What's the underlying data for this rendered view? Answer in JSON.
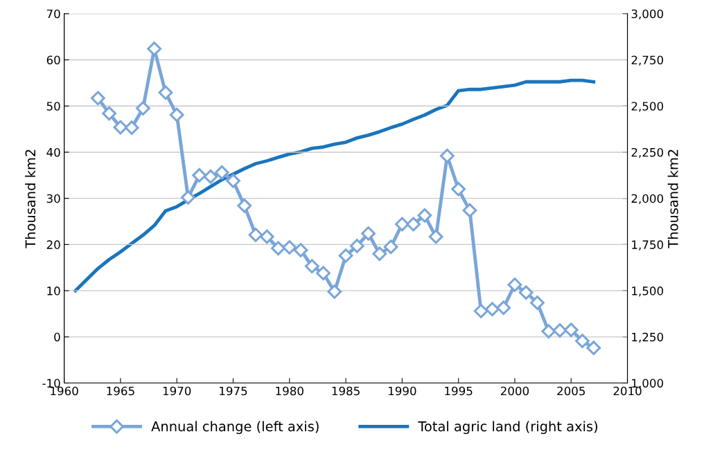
{
  "chart_data": {
    "type": "line",
    "ylabel": "Thousand km2",
    "y2label": "Thousand km2",
    "xlim": [
      1960,
      2010
    ],
    "xticks": [
      1960,
      1965,
      1970,
      1975,
      1980,
      1985,
      1990,
      1995,
      2000,
      2005,
      2010
    ],
    "ylim": [
      -10,
      70
    ],
    "yticks": [
      -10,
      0,
      10,
      20,
      30,
      40,
      50,
      60,
      70
    ],
    "y2lim": [
      1000,
      3000
    ],
    "y2ticks": [
      {
        "value": 1000,
        "label": "1,000"
      },
      {
        "value": 1250,
        "label": "1,250"
      },
      {
        "value": 1500,
        "label": "1,500"
      },
      {
        "value": 1750,
        "label": "1,750"
      },
      {
        "value": 2000,
        "label": "2,000"
      },
      {
        "value": 2250,
        "label": "2,250"
      },
      {
        "value": 2500,
        "label": "2,500"
      },
      {
        "value": 2750,
        "label": "2,750"
      },
      {
        "value": 3000,
        "label": "3,000"
      }
    ],
    "grid": "y",
    "legend": "bottom",
    "series": [
      {
        "name": "Annual change (left axis)",
        "color": "#7aa6d8",
        "marker": "diamond",
        "x": [
          1963,
          1964,
          1965,
          1966,
          1967,
          1968,
          1969,
          1970,
          1971,
          1972,
          1973,
          1974,
          1975,
          1976,
          1977,
          1978,
          1979,
          1980,
          1981,
          1982,
          1983,
          1984,
          1985,
          1986,
          1987,
          1988,
          1989,
          1990,
          1991,
          1992,
          1993,
          1994,
          1995,
          1996,
          1997,
          1998,
          1999,
          2000,
          2001,
          2002,
          2003,
          2004,
          2005,
          2006,
          2007
        ],
        "values": [
          51.7,
          48.4,
          45.4,
          45.3,
          49.5,
          62.4,
          52.9,
          48.1,
          30.2,
          35.0,
          34.7,
          35.6,
          33.8,
          28.4,
          22.1,
          21.7,
          19.2,
          19.4,
          18.8,
          15.3,
          13.8,
          9.8,
          17.6,
          19.7,
          22.4,
          18.0,
          19.5,
          24.4,
          24.4,
          26.3,
          21.7,
          39.2,
          32.0,
          27.4,
          5.6,
          6.0,
          6.3,
          11.3,
          9.6,
          7.4,
          1.2,
          1.4,
          1.5,
          -0.9,
          -2.4
        ]
      },
      {
        "name": "Total agric land (right axis)",
        "color": "#1a75bc",
        "axis": "y2",
        "x": [
          1961,
          1962,
          1963,
          1964,
          1965,
          1966,
          1967,
          1968,
          1969,
          1970,
          1971,
          1972,
          1973,
          1974,
          1975,
          1976,
          1977,
          1978,
          1979,
          1980,
          1981,
          1982,
          1983,
          1984,
          1985,
          1986,
          1987,
          1988,
          1989,
          1990,
          1991,
          1992,
          1993,
          1994,
          1995,
          1996,
          1997,
          1998,
          1999,
          2000,
          2001,
          2002,
          2003,
          2004,
          2005,
          2006,
          2007
        ],
        "values": [
          1500,
          1560,
          1620,
          1669,
          1710,
          1756,
          1801,
          1853,
          1932,
          1955,
          1992,
          2026,
          2064,
          2101,
          2131,
          2161,
          2188,
          2203,
          2222,
          2240,
          2252,
          2271,
          2278,
          2293,
          2304,
          2327,
          2342,
          2361,
          2383,
          2402,
          2428,
          2451,
          2481,
          2504,
          2583,
          2590,
          2590,
          2598,
          2605,
          2613,
          2631,
          2631,
          2631,
          2631,
          2639,
          2639,
          2631
        ]
      }
    ]
  }
}
